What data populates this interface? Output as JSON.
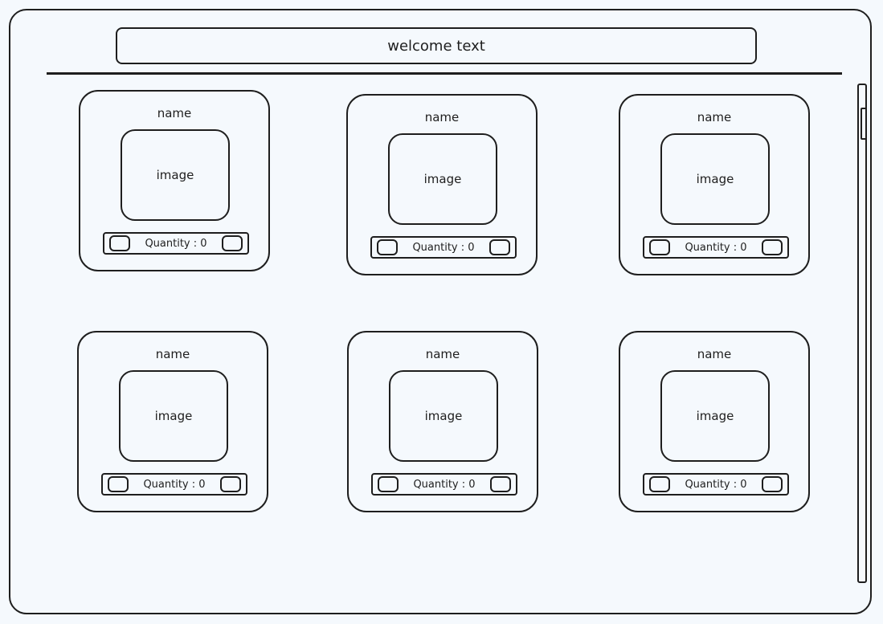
{
  "header": {
    "welcome_text": "welcome text"
  },
  "cards": [
    {
      "name": "name",
      "image_label": "image",
      "quantity_label": "Quantity : 0"
    },
    {
      "name": "name",
      "image_label": "image",
      "quantity_label": "Quantity : 0"
    },
    {
      "name": "name",
      "image_label": "image",
      "quantity_label": "Quantity : 0"
    },
    {
      "name": "name",
      "image_label": "image",
      "quantity_label": "Quantity : 0"
    },
    {
      "name": "name",
      "image_label": "image",
      "quantity_label": "Quantity : 0"
    },
    {
      "name": "name",
      "image_label": "image",
      "quantity_label": "Quantity : 0"
    }
  ],
  "colors": {
    "background": "#f5f9fd",
    "stroke": "#1e1e1e"
  }
}
